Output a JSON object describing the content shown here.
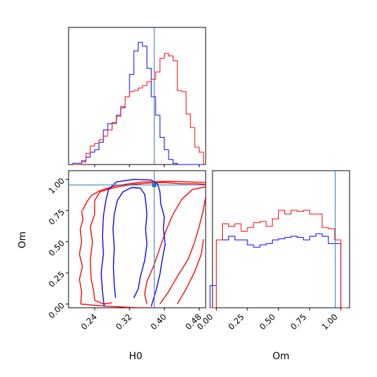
{
  "chart_data": {
    "type": "corner",
    "colors": {
      "blue": "#0000ff",
      "red": "#ff0000",
      "truth": "#1f77b4",
      "frame": "#000000"
    },
    "truth": {
      "H0": 0.377,
      "Om": 0.955
    },
    "xlabels": {
      "bottom_left": "H0",
      "bottom_right": "Om"
    },
    "ylabels": {
      "middle_left": "Om"
    },
    "H0_axis": {
      "range": [
        0.18,
        0.495
      ],
      "ticks": [
        0.24,
        0.32,
        0.4,
        0.48
      ],
      "tick_labels": [
        "0.24",
        "0.32",
        "0.40",
        "0.48"
      ]
    },
    "Om_axis": {
      "range": [
        -0.03,
        1.07
      ],
      "ticks": [
        0.0,
        0.25,
        0.5,
        0.75,
        1.0
      ],
      "tick_labels": [
        "0.00",
        "0.25",
        "0.50",
        "0.75",
        "1.00"
      ]
    },
    "panels": [
      {
        "id": "hist-H0",
        "type": "step-histogram",
        "x_param": "H0",
        "bin_edges": [
          0.19,
          0.2,
          0.21,
          0.22,
          0.23,
          0.24,
          0.25,
          0.26,
          0.27,
          0.28,
          0.29,
          0.3,
          0.31,
          0.32,
          0.33,
          0.34,
          0.35,
          0.36,
          0.37,
          0.38,
          0.39,
          0.4,
          0.41,
          0.42,
          0.43,
          0.44,
          0.45,
          0.46,
          0.47,
          0.48,
          0.49
        ],
        "series": [
          {
            "color": "blue",
            "heights": [
              0.01,
              0.01,
              0.03,
              0.06,
              0.1,
              0.12,
              0.18,
              0.28,
              0.33,
              0.34,
              0.4,
              0.46,
              0.55,
              0.73,
              0.92,
              0.99,
              0.96,
              0.78,
              0.55,
              0.4,
              0.22,
              0.12,
              0.04,
              0.01,
              0.0,
              0.0,
              0.0,
              0.0,
              0.0,
              0.0
            ]
          },
          {
            "color": "red",
            "heights": [
              0.0,
              0.0,
              0.02,
              0.09,
              0.15,
              0.17,
              0.2,
              0.23,
              0.28,
              0.33,
              0.39,
              0.47,
              0.55,
              0.59,
              0.6,
              0.62,
              0.64,
              0.67,
              0.69,
              0.75,
              0.86,
              0.9,
              0.88,
              0.84,
              0.6,
              0.59,
              0.41,
              0.3,
              0.14,
              0.1
            ]
          }
        ]
      },
      {
        "id": "hist-Om",
        "type": "step-histogram",
        "x_param": "Om",
        "bin_edges": [
          -0.05,
          0.0,
          0.05,
          0.1,
          0.15,
          0.2,
          0.25,
          0.3,
          0.35,
          0.4,
          0.45,
          0.5,
          0.55,
          0.6,
          0.65,
          0.7,
          0.75,
          0.8,
          0.85,
          0.9,
          0.95,
          1.0,
          1.05
        ],
        "series": [
          {
            "color": "blue",
            "heights": [
              0.18,
              0.55,
              0.55,
              0.58,
              0.55,
              0.55,
              0.51,
              0.49,
              0.51,
              0.52,
              0.55,
              0.56,
              0.57,
              0.58,
              0.57,
              0.55,
              0.58,
              0.6,
              0.58,
              0.52,
              0.52,
              0.0
            ]
          },
          {
            "color": "red",
            "heights": [
              0.0,
              0.55,
              0.68,
              0.66,
              0.68,
              0.62,
              0.65,
              0.69,
              0.7,
              0.66,
              0.72,
              0.79,
              0.76,
              0.79,
              0.78,
              0.79,
              0.76,
              0.76,
              0.65,
              0.64,
              0.55,
              0.0
            ]
          }
        ]
      },
      {
        "id": "contour-H0-Om",
        "type": "contour",
        "x_param": "H0",
        "y_param": "Om",
        "contours": [
          {
            "color": "red",
            "level": "outer-left",
            "points": [
              [
                0.208,
                0.0
              ],
              [
                0.21,
                0.1
              ],
              [
                0.205,
                0.2
              ],
              [
                0.212,
                0.3
              ],
              [
                0.205,
                0.4
              ],
              [
                0.21,
                0.5
              ],
              [
                0.207,
                0.6
              ],
              [
                0.213,
                0.68
              ],
              [
                0.21,
                0.75
              ]
            ]
          },
          {
            "color": "red",
            "level": "outer",
            "points": [
              [
                0.212,
                0.75
              ],
              [
                0.222,
                0.82
              ],
              [
                0.232,
                0.87
              ],
              [
                0.252,
                0.91
              ],
              [
                0.29,
                0.95
              ],
              [
                0.35,
                0.98
              ],
              [
                0.41,
                0.985
              ],
              [
                0.46,
                0.98
              ],
              [
                0.495,
                0.975
              ]
            ]
          },
          {
            "color": "red",
            "level": "outer-bottom",
            "points": [
              [
                0.208,
                0.0
              ],
              [
                0.24,
                -0.01
              ],
              [
                0.28,
                -0.02
              ],
              [
                0.34,
                -0.03
              ],
              [
                0.38,
                -0.03
              ]
            ]
          },
          {
            "color": "red",
            "level": "inner-left",
            "points": [
              [
                0.252,
                0.9
              ],
              [
                0.24,
                0.83
              ],
              [
                0.24,
                0.72
              ],
              [
                0.23,
                0.62
              ],
              [
                0.235,
                0.5
              ],
              [
                0.23,
                0.35
              ],
              [
                0.232,
                0.2
              ],
              [
                0.238,
                0.1
              ],
              [
                0.24,
                0.03
              ],
              [
                0.26,
                0.0
              ],
              [
                0.28,
                0.01
              ]
            ]
          },
          {
            "color": "red",
            "level": "inner-top",
            "points": [
              [
                0.252,
                0.9
              ],
              [
                0.27,
                0.92
              ],
              [
                0.3,
                0.945
              ],
              [
                0.33,
                0.96
              ],
              [
                0.36,
                0.97
              ],
              [
                0.4,
                0.975
              ],
              [
                0.44,
                0.965
              ],
              [
                0.47,
                0.965
              ],
              [
                0.495,
                0.96
              ]
            ]
          },
          {
            "color": "red",
            "level": "inner-right",
            "points": [
              [
                0.36,
                0.0
              ],
              [
                0.355,
                0.08
              ],
              [
                0.36,
                0.18
              ],
              [
                0.375,
                0.3
              ],
              [
                0.39,
                0.45
              ],
              [
                0.405,
                0.6
              ],
              [
                0.42,
                0.72
              ],
              [
                0.44,
                0.84
              ],
              [
                0.465,
                0.92
              ],
              [
                0.495,
                0.94
              ]
            ]
          },
          {
            "color": "red",
            "level": "outer-right",
            "points": [
              [
                0.39,
                0.0
              ],
              [
                0.41,
                0.1
              ],
              [
                0.43,
                0.22
              ],
              [
                0.455,
                0.36
              ],
              [
                0.47,
                0.5
              ],
              [
                0.48,
                0.62
              ],
              [
                0.49,
                0.76
              ],
              [
                0.495,
                0.86
              ]
            ]
          },
          {
            "color": "red",
            "level": "outer-right-2",
            "points": [
              [
                0.43,
                0.0
              ],
              [
                0.45,
                0.12
              ],
              [
                0.47,
                0.26
              ],
              [
                0.485,
                0.4
              ],
              [
                0.49,
                0.52
              ]
            ]
          },
          {
            "color": "blue",
            "level": "outer",
            "points": [
              [
                0.262,
                -0.02
              ],
              [
                0.258,
                0.1
              ],
              [
                0.255,
                0.25
              ],
              [
                0.26,
                0.4
              ],
              [
                0.258,
                0.55
              ],
              [
                0.26,
                0.7
              ],
              [
                0.265,
                0.82
              ],
              [
                0.272,
                0.92
              ],
              [
                0.29,
                0.98
              ],
              [
                0.33,
                1.0
              ],
              [
                0.37,
                0.995
              ],
              [
                0.385,
                0.96
              ],
              [
                0.39,
                0.9
              ],
              [
                0.392,
                0.8
              ],
              [
                0.4,
                0.7
              ],
              [
                0.398,
                0.6
              ],
              [
                0.402,
                0.48
              ],
              [
                0.395,
                0.35
              ],
              [
                0.39,
                0.24
              ],
              [
                0.382,
                0.12
              ],
              [
                0.375,
                0.04
              ],
              [
                0.37,
                -0.02
              ]
            ]
          },
          {
            "color": "blue",
            "level": "inner",
            "points": [
              [
                0.288,
                0.05
              ],
              [
                0.285,
                0.15
              ],
              [
                0.283,
                0.3
              ],
              [
                0.285,
                0.45
              ],
              [
                0.282,
                0.6
              ],
              [
                0.285,
                0.72
              ],
              [
                0.292,
                0.83
              ],
              [
                0.305,
                0.9
              ],
              [
                0.325,
                0.935
              ],
              [
                0.345,
                0.93
              ],
              [
                0.355,
                0.88
              ],
              [
                0.358,
                0.8
              ],
              [
                0.36,
                0.72
              ],
              [
                0.357,
                0.6
              ],
              [
                0.36,
                0.48
              ],
              [
                0.355,
                0.35
              ],
              [
                0.345,
                0.22
              ],
              [
                0.34,
                0.12
              ],
              [
                0.33,
                0.05
              ]
            ]
          }
        ]
      }
    ]
  }
}
